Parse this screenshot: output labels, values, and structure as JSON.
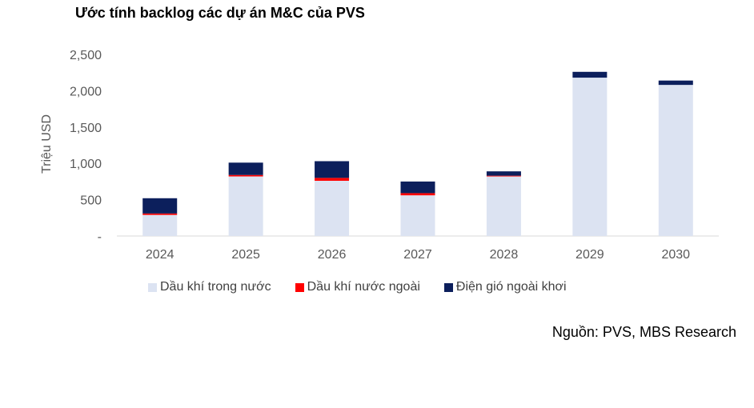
{
  "chart_data": {
    "type": "bar",
    "stacked": true,
    "title": "Ước tính backlog các dự án M&C của PVS",
    "xlabel": "",
    "ylabel": "Triệu USD",
    "categories": [
      "2024",
      "2025",
      "2026",
      "2027",
      "2028",
      "2029",
      "2030"
    ],
    "ylim": [
      0,
      2500
    ],
    "yticks": [
      0,
      500,
      1000,
      1500,
      2000,
      2500
    ],
    "ytick_labels": [
      "-",
      "500",
      "1,000",
      "1,500",
      "2,000",
      "2,500"
    ],
    "grid": false,
    "legend_position": "bottom",
    "series": [
      {
        "name": "Dầu khí trong nước",
        "color": "#dce3f2",
        "values": [
          290,
          820,
          760,
          560,
          820,
          2180,
          2080
        ]
      },
      {
        "name": "Dầu khí nước ngoài",
        "color": "#ff0000",
        "values": [
          20,
          20,
          40,
          30,
          10,
          0,
          0
        ]
      },
      {
        "name": "Điện gió ngoài khơi",
        "color": "#0c1f5c",
        "values": [
          210,
          170,
          230,
          160,
          60,
          80,
          60
        ]
      }
    ]
  },
  "source_note": "Nguồn: PVS, MBS Research"
}
